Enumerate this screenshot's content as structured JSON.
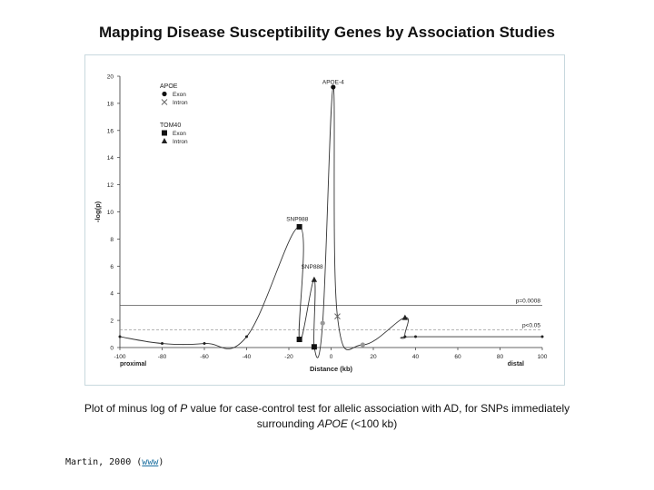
{
  "slide": {
    "title": "Mapping Disease Susceptibility Genes by Association Studies",
    "caption_part1": "Plot of minus log of ",
    "caption_p": "P",
    "caption_part2": " value for case-control test for allelic association with AD, for SNPs immediately surrounding ",
    "caption_gene": "APOE",
    "caption_part3": " (<100 kb)",
    "credit_prefix": "Martin, 2000 (",
    "credit_link": "www",
    "credit_suffix": ")"
  },
  "chart_data": {
    "type": "line",
    "title": "",
    "xlabel": "Distance (kb)",
    "ylabel": "-log(p)",
    "xlim": [
      -100,
      100
    ],
    "ylim": [
      0,
      20
    ],
    "xticks": [
      -100,
      -80,
      -60,
      -40,
      -20,
      0,
      20,
      40,
      60,
      80,
      100
    ],
    "yticks": [
      0,
      2,
      4,
      6,
      8,
      10,
      12,
      14,
      16,
      18,
      20
    ],
    "x_end_labels": {
      "left": "proximal",
      "right": "distal"
    },
    "grid": false,
    "legend_position": "top-left",
    "legend": {
      "groups": [
        {
          "title": "APOE",
          "items": [
            {
              "marker": "circle",
              "label": "Exon"
            },
            {
              "marker": "x",
              "label": "Intron"
            }
          ]
        },
        {
          "title": "TOM40",
          "items": [
            {
              "marker": "square",
              "label": "Exon"
            },
            {
              "marker": "triangle",
              "label": "Intron"
            }
          ]
        }
      ]
    },
    "threshold_lines": [
      {
        "label": "p=0.0008",
        "y": 3.1,
        "style": "solid"
      },
      {
        "label": "p<0.05",
        "y": 1.3,
        "style": "dashed"
      }
    ],
    "annotations": [
      {
        "text": "APOE-4",
        "x": 1,
        "y": 19.3
      },
      {
        "text": "SNP988",
        "x": -16,
        "y": 9.2
      },
      {
        "text": "SNP888",
        "x": -9,
        "y": 5.7
      }
    ],
    "series": [
      {
        "points": [
          {
            "x": -100,
            "y": 0.8,
            "marker": "dot"
          },
          {
            "x": -80,
            "y": 0.3,
            "marker": "dot"
          },
          {
            "x": -60,
            "y": 0.3,
            "marker": "dot"
          },
          {
            "x": -40,
            "y": 0.8,
            "marker": "dot"
          },
          {
            "x": -15,
            "y": 8.9,
            "marker": "square"
          },
          {
            "x": -15,
            "y": 0.6,
            "marker": "square"
          },
          {
            "x": -8,
            "y": 5.0,
            "marker": "triangle"
          },
          {
            "x": -8,
            "y": 0.05,
            "marker": "square"
          },
          {
            "x": -4,
            "y": 1.8,
            "marker": "circle-gray"
          },
          {
            "x": 1,
            "y": 19.2,
            "marker": "circle"
          },
          {
            "x": 3,
            "y": 2.3,
            "marker": "x"
          },
          {
            "x": 15,
            "y": 0.2,
            "marker": "circle-gray"
          },
          {
            "x": 35,
            "y": 2.2,
            "marker": "triangle"
          },
          {
            "x": 35,
            "y": 0.8,
            "marker": "dot"
          },
          {
            "x": 40,
            "y": 0.8,
            "marker": "dot"
          },
          {
            "x": 100,
            "y": 0.8,
            "marker": "dot"
          }
        ]
      }
    ]
  }
}
